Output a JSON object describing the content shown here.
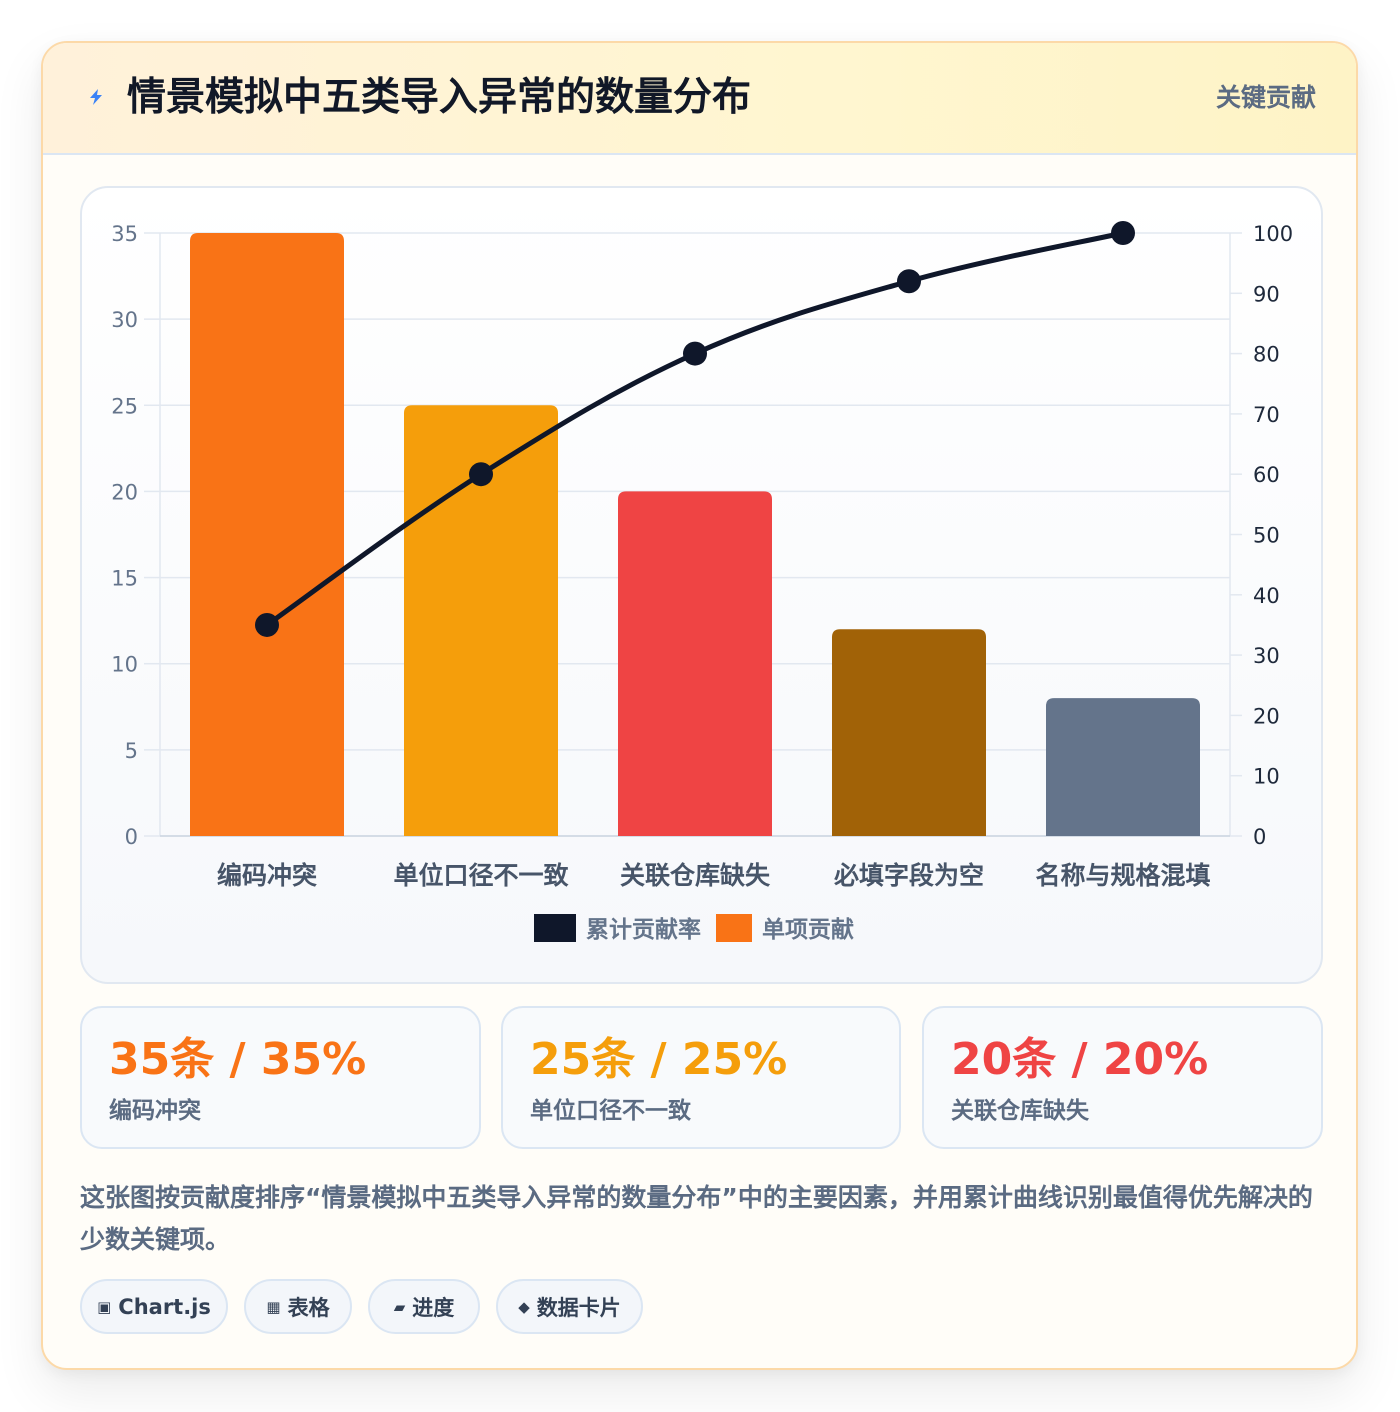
{
  "header": {
    "title": "情景模拟中五类导入异常的数量分布",
    "badge": "关键贡献"
  },
  "chart_data": {
    "type": "bar",
    "categories": [
      "编码冲突",
      "单位口径不一致",
      "关联仓库缺失",
      "必填字段为空",
      "名称与规格混填"
    ],
    "series": [
      {
        "name": "单项贡献",
        "type": "bar",
        "axis": "left",
        "values": [
          35,
          25,
          20,
          12,
          8
        ],
        "colors": [
          "#f97316",
          "#f59e0b",
          "#ef4444",
          "#a16207",
          "#64748b"
        ]
      },
      {
        "name": "累计贡献率",
        "type": "line",
        "axis": "right",
        "values": [
          35,
          60,
          80,
          92,
          100
        ],
        "color": "#0f172a"
      }
    ],
    "y_left": {
      "min": 0,
      "max": 35,
      "ticks": [
        0,
        5,
        10,
        15,
        20,
        25,
        30,
        35
      ]
    },
    "y_right": {
      "min": 0,
      "max": 100,
      "ticks": [
        0,
        10,
        20,
        30,
        40,
        50,
        60,
        70,
        80,
        90,
        100
      ]
    },
    "legend": [
      {
        "label": "累计贡献率",
        "color": "#0f172a"
      },
      {
        "label": "单项贡献",
        "color": "#f97316"
      }
    ],
    "legend_position": "bottom",
    "grid": true
  },
  "stats": [
    {
      "value": "35条 / 35%",
      "label": "编码冲突",
      "color": "#f97316"
    },
    {
      "value": "25条 / 25%",
      "label": "单位口径不一致",
      "color": "#f59e0b"
    },
    {
      "value": "20条 / 20%",
      "label": "关联仓库缺失",
      "color": "#ef4444"
    }
  ],
  "description": "这张图按贡献度排序“情景模拟中五类导入异常的数量分布”中的主要因素，并用累计曲线识别最值得优先解决的少数关键项。",
  "tags": [
    {
      "icon": "▣",
      "label": "Chart.js"
    },
    {
      "icon": "▦",
      "label": "表格"
    },
    {
      "icon": "▰",
      "label": "进度"
    },
    {
      "icon": "◆",
      "label": "数据卡片"
    }
  ]
}
